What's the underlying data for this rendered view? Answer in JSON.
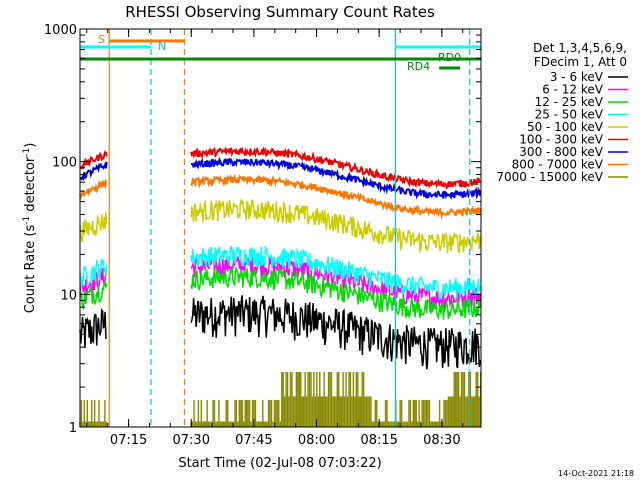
{
  "chart_data": {
    "type": "line",
    "title": "RHESSI Observing Summary Count Rates",
    "xlabel": "Start Time (02-Jul-08 07:03:22)",
    "ylabel_main": "Count Rate (s",
    "ylabel_sup": "-1",
    "ylabel_end": " detector",
    "ylabel_close": ")",
    "yscale": "log",
    "ylim": [
      1,
      1000
    ],
    "xlim_minutes": [
      0,
      96
    ],
    "x_ticks": [
      {
        "label": "07:15",
        "m": 11.633
      },
      {
        "label": "07:30",
        "m": 26.633
      },
      {
        "label": "07:45",
        "m": 41.633
      },
      {
        "label": "08:00",
        "m": 56.633
      },
      {
        "label": "08:15",
        "m": 71.633
      },
      {
        "label": "08:30",
        "m": 86.633
      }
    ],
    "y_ticks": [
      {
        "label": "1",
        "v": 1
      },
      {
        "label": "10",
        "v": 10
      },
      {
        "label": "100",
        "v": 100
      },
      {
        "label": "1000",
        "v": 1000
      }
    ],
    "legend_header": [
      "Det 1,3,4,5,6,9,",
      "FDecim 1, Att 0"
    ],
    "series": [
      {
        "name": "3 - 6 keV",
        "color": "#000000",
        "base": 7
      },
      {
        "name": "6 - 12 keV",
        "color": "#ff00ff",
        "base": 16
      },
      {
        "name": "12 - 25 keV",
        "color": "#00dd00",
        "base": 13
      },
      {
        "name": "25 - 50 keV",
        "color": "#00ffff",
        "base": 19
      },
      {
        "name": "50 - 100 keV",
        "color": "#cccc00",
        "base": 42
      },
      {
        "name": "100 - 300 keV",
        "color": "#ee0000",
        "base": 115
      },
      {
        "name": "300 - 800 keV",
        "color": "#0000dd",
        "base": 95
      },
      {
        "name": "800 - 7000 keV",
        "color": "#ff7700",
        "base": 70
      },
      {
        "name": "7000 - 15000 keV",
        "color": "#888800",
        "base": 1.5
      }
    ],
    "annotations": [
      {
        "label": "S",
        "color": "#ff7700"
      },
      {
        "label": "N",
        "color": "#00cccc"
      },
      {
        "label": "RD0",
        "color": "#008800"
      },
      {
        "label": "RD4",
        "color": "#008800"
      }
    ],
    "timestamp": "14-Oct-2021 21:18"
  }
}
